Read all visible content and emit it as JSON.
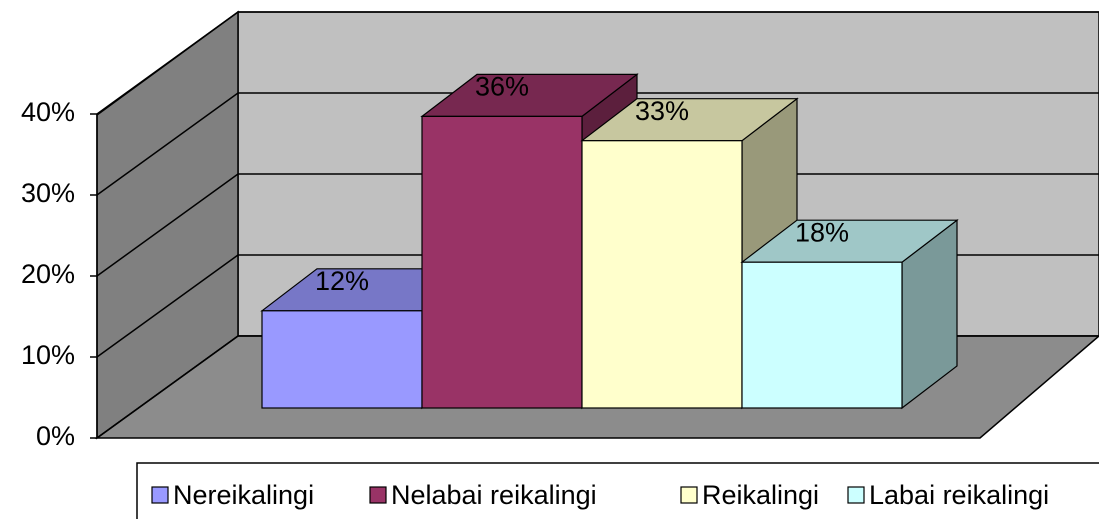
{
  "chart_data": {
    "type": "bar3d",
    "series": [
      {
        "name": "Nereikalingi",
        "color": "#9999ff",
        "values": [
          12
        ],
        "value_labels": [
          "12%"
        ]
      },
      {
        "name": "Nelabai reikalingi",
        "color": "#993366",
        "values": [
          36
        ],
        "value_labels": [
          "36%"
        ]
      },
      {
        "name": "Reikalingi",
        "color": "#ffffcc",
        "values": [
          33
        ],
        "value_labels": [
          "33%"
        ]
      },
      {
        "name": "Labai reikalingi",
        "color": "#ccffff",
        "values": [
          18
        ],
        "value_labels": [
          "18%"
        ]
      }
    ],
    "ylim": [
      0,
      40
    ],
    "yticks": [
      {
        "value": 0,
        "label": "0%"
      },
      {
        "value": 10,
        "label": "10%"
      },
      {
        "value": 20,
        "label": "20%"
      },
      {
        "value": 30,
        "label": "30%"
      },
      {
        "value": 40,
        "label": "40%"
      }
    ],
    "grid": true,
    "legend": "bottom"
  }
}
